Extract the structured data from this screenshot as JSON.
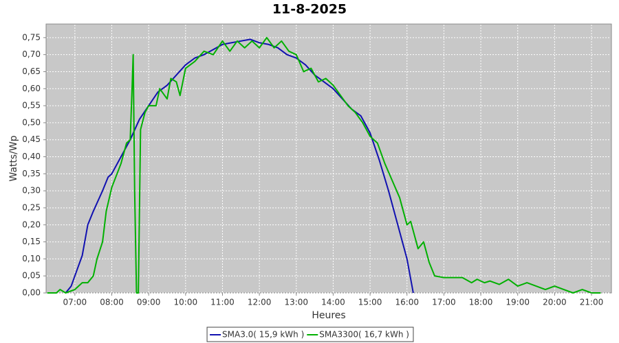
{
  "chart_data": {
    "type": "line",
    "title": "11-8-2025",
    "x_label": "Heures",
    "y_label": "Watts/Wp",
    "xlim": [
      6.22,
      21.54
    ],
    "ylim": [
      0,
      0.79
    ],
    "grid": true,
    "xticks": [
      {
        "value": 7,
        "label": "07:00"
      },
      {
        "value": 8,
        "label": "08:00"
      },
      {
        "value": 9,
        "label": "09:00"
      },
      {
        "value": 10,
        "label": "10:00"
      },
      {
        "value": 11,
        "label": "11:00"
      },
      {
        "value": 12,
        "label": "12:00"
      },
      {
        "value": 13,
        "label": "13:00"
      },
      {
        "value": 14,
        "label": "14:00"
      },
      {
        "value": 15,
        "label": "15:00"
      },
      {
        "value": 16,
        "label": "16:00"
      },
      {
        "value": 17,
        "label": "17:00"
      },
      {
        "value": 18,
        "label": "18:00"
      },
      {
        "value": 19,
        "label": "19:00"
      },
      {
        "value": 20,
        "label": "20:00"
      },
      {
        "value": 21,
        "label": "21:00"
      }
    ],
    "yticks": [
      {
        "value": 0,
        "label": "0,00"
      },
      {
        "value": 0.05,
        "label": "0,05"
      },
      {
        "value": 0.1,
        "label": "0,10"
      },
      {
        "value": 0.15,
        "label": "0,15"
      },
      {
        "value": 0.2,
        "label": "0,20"
      },
      {
        "value": 0.25,
        "label": "0,25"
      },
      {
        "value": 0.3,
        "label": "0,30"
      },
      {
        "value": 0.35,
        "label": "0,35"
      },
      {
        "value": 0.4,
        "label": "0,40"
      },
      {
        "value": 0.45,
        "label": "0,45"
      },
      {
        "value": 0.5,
        "label": "0,50"
      },
      {
        "value": 0.55,
        "label": "0,55"
      },
      {
        "value": 0.6,
        "label": "0,60"
      },
      {
        "value": 0.65,
        "label": "0,65"
      },
      {
        "value": 0.7,
        "label": "0,70"
      },
      {
        "value": 0.75,
        "label": "0,75"
      }
    ],
    "series": [
      {
        "name": "SMA3.0( 15,9 kWh )",
        "color": "#1010b0",
        "x": [
          6.75,
          6.9,
          7.0,
          7.2,
          7.35,
          7.5,
          7.75,
          7.9,
          8.0,
          8.25,
          8.5,
          8.75,
          9.0,
          9.25,
          9.5,
          9.75,
          10.0,
          10.25,
          10.5,
          10.75,
          11.0,
          11.25,
          11.5,
          11.75,
          12.0,
          12.25,
          12.5,
          12.75,
          13.0,
          13.25,
          13.5,
          13.75,
          14.0,
          14.25,
          14.5,
          14.75,
          15.0,
          15.25,
          15.5,
          15.75,
          16.0,
          16.17
        ],
        "values": [
          0,
          0.02,
          0.05,
          0.11,
          0.2,
          0.24,
          0.3,
          0.34,
          0.35,
          0.4,
          0.45,
          0.51,
          0.55,
          0.59,
          0.61,
          0.64,
          0.67,
          0.69,
          0.7,
          0.715,
          0.73,
          0.735,
          0.74,
          0.745,
          0.735,
          0.73,
          0.72,
          0.7,
          0.69,
          0.67,
          0.64,
          0.62,
          0.6,
          0.57,
          0.54,
          0.52,
          0.47,
          0.39,
          0.3,
          0.2,
          0.1,
          0
        ]
      },
      {
        "name": "SMA3300( 16,7 kWh )",
        "color": "#00b000",
        "x": [
          6.25,
          6.5,
          6.6,
          6.75,
          7.0,
          7.2,
          7.35,
          7.5,
          7.6,
          7.75,
          7.85,
          8.0,
          8.25,
          8.4,
          8.5,
          8.55,
          8.58,
          8.62,
          8.67,
          8.72,
          8.78,
          8.9,
          9.0,
          9.2,
          9.3,
          9.5,
          9.6,
          9.75,
          9.85,
          10.0,
          10.25,
          10.5,
          10.75,
          11.0,
          11.2,
          11.4,
          11.6,
          11.8,
          12.0,
          12.2,
          12.4,
          12.6,
          12.8,
          13.0,
          13.2,
          13.4,
          13.6,
          13.8,
          14.0,
          14.2,
          14.4,
          14.6,
          14.8,
          15.0,
          15.2,
          15.4,
          15.6,
          15.8,
          16.0,
          16.1,
          16.3,
          16.45,
          16.6,
          16.75,
          17.0,
          17.25,
          17.5,
          17.75,
          17.9,
          18.1,
          18.25,
          18.5,
          18.75,
          19.0,
          19.25,
          19.5,
          19.75,
          20.0,
          20.25,
          20.5,
          20.75,
          21.0,
          21.25
        ],
        "values": [
          0,
          0,
          0.01,
          0,
          0.01,
          0.03,
          0.03,
          0.05,
          0.1,
          0.15,
          0.24,
          0.31,
          0.38,
          0.44,
          0.45,
          0.6,
          0.7,
          0.3,
          0,
          0,
          0.48,
          0.53,
          0.55,
          0.55,
          0.6,
          0.57,
          0.63,
          0.62,
          0.58,
          0.66,
          0.68,
          0.71,
          0.7,
          0.74,
          0.71,
          0.74,
          0.72,
          0.74,
          0.72,
          0.75,
          0.72,
          0.74,
          0.71,
          0.7,
          0.65,
          0.66,
          0.62,
          0.63,
          0.61,
          0.58,
          0.55,
          0.53,
          0.5,
          0.46,
          0.44,
          0.38,
          0.33,
          0.28,
          0.2,
          0.21,
          0.13,
          0.15,
          0.09,
          0.05,
          0.045,
          0.045,
          0.045,
          0.03,
          0.04,
          0.03,
          0.035,
          0.025,
          0.04,
          0.02,
          0.03,
          0.02,
          0.01,
          0.02,
          0.01,
          0,
          0.01,
          0,
          0
        ]
      }
    ]
  }
}
